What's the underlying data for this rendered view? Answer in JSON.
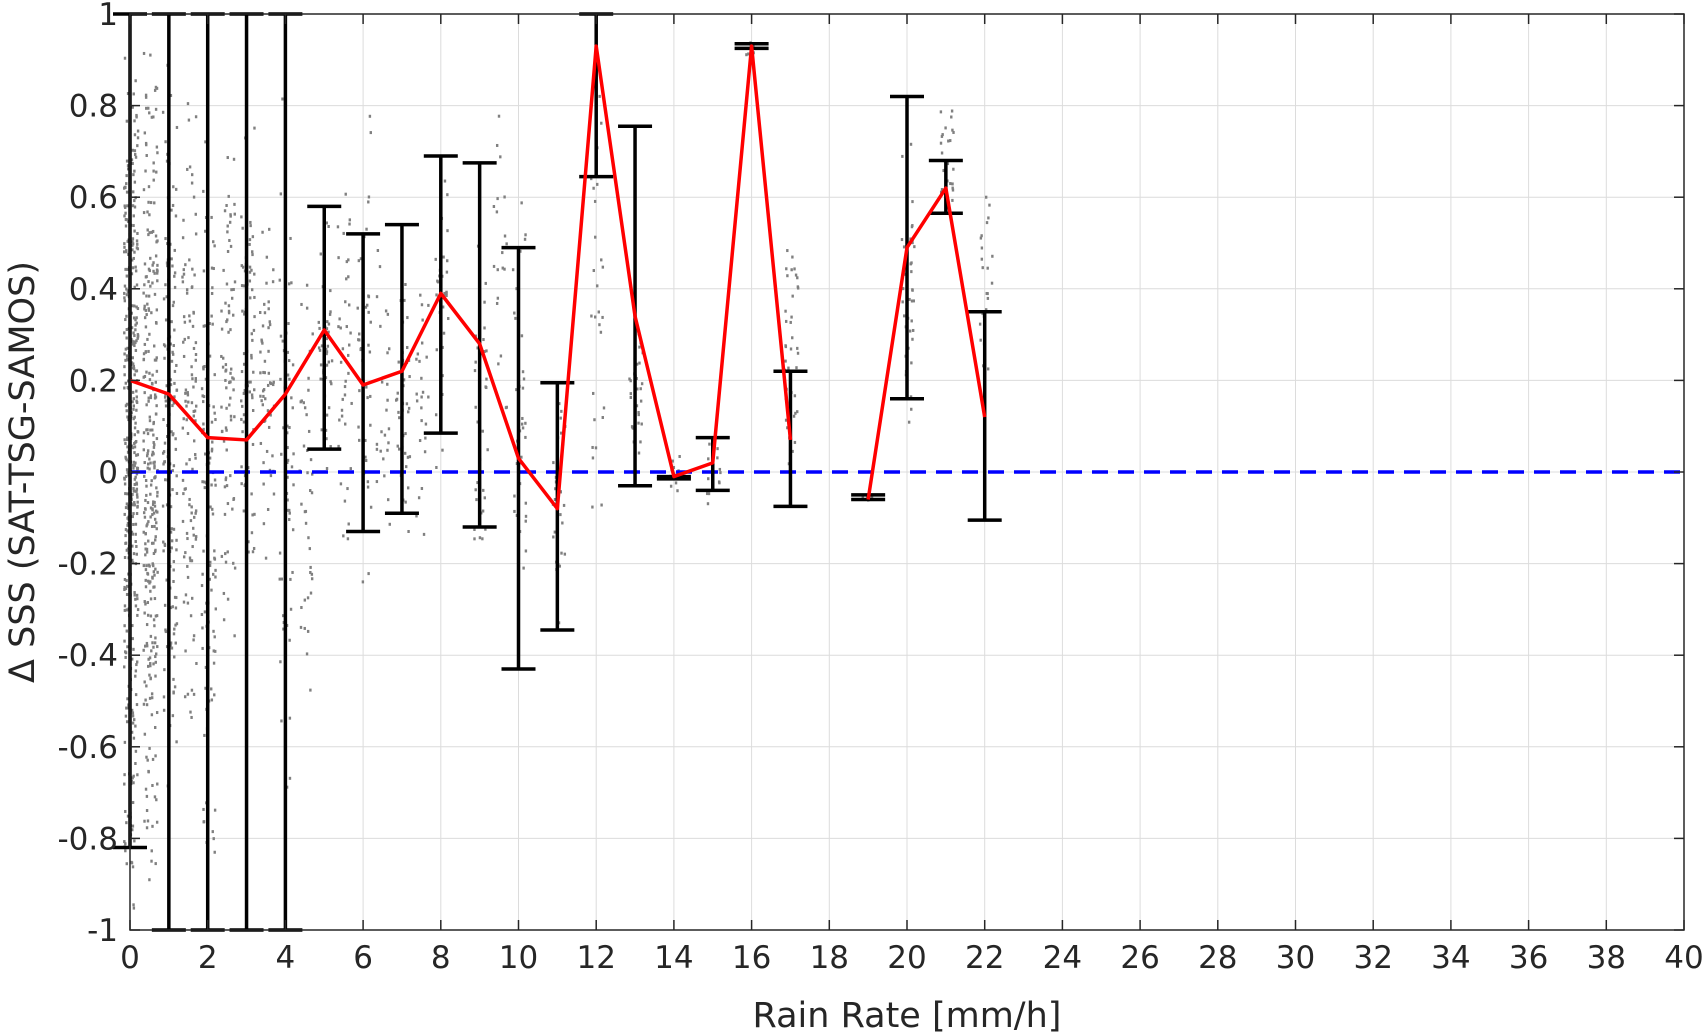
{
  "chart_data": {
    "type": "line",
    "xlabel": "Rain Rate [mm/h]",
    "ylabel": "Δ SSS (SAT-TSG-SAMOS)",
    "xlim": [
      0,
      40
    ],
    "ylim": [
      -1,
      1
    ],
    "x_ticks": [
      0,
      2,
      4,
      6,
      8,
      10,
      12,
      14,
      16,
      18,
      20,
      22,
      24,
      26,
      28,
      30,
      32,
      34,
      36,
      38,
      40
    ],
    "x_tick_labels": [
      "0",
      "2",
      "4",
      "6",
      "8",
      "10",
      "12",
      "14",
      "16",
      "18",
      "20",
      "22",
      "24",
      "26",
      "28",
      "30",
      "32",
      "34",
      "36",
      "38",
      "40"
    ],
    "y_ticks": [
      1,
      0.8,
      0.6,
      0.4,
      0.2,
      0,
      -0.2,
      -0.4,
      -0.6,
      -0.8,
      -1
    ],
    "y_tick_labels": [
      "1",
      "0.8",
      "0.6",
      "0.4",
      "0.2",
      "0",
      "-0.2",
      "-0.4",
      "-0.6",
      "-0.8",
      "-1"
    ],
    "grid": true,
    "colors": {
      "mean_line": "#ff0000",
      "error_bars": "#000000",
      "zero_line": "#0000ff",
      "scatter": "#808080",
      "grid": "#dcdcdc"
    },
    "zero_line": {
      "y": 0,
      "style": "dashed"
    },
    "mean_series": [
      {
        "segment": [
          [
            0,
            0.2
          ],
          [
            1,
            0.17
          ],
          [
            2,
            0.075
          ],
          [
            3,
            0.07
          ],
          [
            4,
            0.17
          ],
          [
            5,
            0.31
          ],
          [
            6,
            0.19
          ],
          [
            7,
            0.22
          ],
          [
            8,
            0.39
          ],
          [
            9,
            0.28
          ],
          [
            10,
            0.03
          ],
          [
            11,
            -0.08
          ],
          [
            12,
            0.93
          ],
          [
            13,
            0.34
          ],
          [
            14,
            -0.01
          ],
          [
            15,
            0.02
          ],
          [
            16,
            0.93
          ],
          [
            17,
            0.07
          ]
        ]
      },
      {
        "segment": [
          [
            19,
            -0.06
          ],
          [
            20,
            0.49
          ],
          [
            21,
            0.62
          ],
          [
            22,
            0.12
          ]
        ]
      }
    ],
    "error_bars": [
      {
        "x": 0,
        "low": -0.82,
        "high": 1.0
      },
      {
        "x": 1,
        "low": -1.0,
        "high": 1.0
      },
      {
        "x": 2,
        "low": -1.0,
        "high": 1.0
      },
      {
        "x": 3,
        "low": -1.0,
        "high": 1.0
      },
      {
        "x": 4,
        "low": -1.0,
        "high": 1.0
      },
      {
        "x": 5,
        "low": 0.05,
        "high": 0.58
      },
      {
        "x": 6,
        "low": -0.13,
        "high": 0.52
      },
      {
        "x": 7,
        "low": -0.09,
        "high": 0.54
      },
      {
        "x": 8,
        "low": 0.085,
        "high": 0.69
      },
      {
        "x": 9,
        "low": -0.12,
        "high": 0.675
      },
      {
        "x": 10,
        "low": -0.43,
        "high": 0.49
      },
      {
        "x": 11,
        "low": -0.345,
        "high": 0.195
      },
      {
        "x": 12,
        "low": 0.645,
        "high": 1.0
      },
      {
        "x": 13,
        "low": -0.03,
        "high": 0.755
      },
      {
        "x": 14,
        "low": -0.015,
        "high": -0.01
      },
      {
        "x": 15,
        "low": -0.04,
        "high": 0.075
      },
      {
        "x": 16,
        "low": 0.925,
        "high": 0.935
      },
      {
        "x": 17,
        "low": -0.075,
        "high": 0.22
      },
      {
        "x": 19,
        "low": -0.06,
        "high": -0.05
      },
      {
        "x": 20,
        "low": 0.16,
        "high": 0.82
      },
      {
        "x": 21,
        "low": 0.565,
        "high": 0.68
      },
      {
        "x": 22,
        "low": -0.105,
        "high": 0.35
      }
    ],
    "scatter_columns": [
      {
        "x": 0.0,
        "low": -1.0,
        "high": 1.0,
        "n": 420
      },
      {
        "x": 0.5,
        "low": -1.0,
        "high": 1.0,
        "n": 300
      },
      {
        "x": 1.0,
        "low": -0.8,
        "high": 0.95,
        "n": 150
      },
      {
        "x": 1.5,
        "low": -0.6,
        "high": 0.85,
        "n": 110
      },
      {
        "x": 2.0,
        "low": -0.95,
        "high": 0.9,
        "n": 110
      },
      {
        "x": 2.5,
        "low": -0.45,
        "high": 0.75,
        "n": 80
      },
      {
        "x": 3.0,
        "low": -0.3,
        "high": 0.85,
        "n": 80
      },
      {
        "x": 3.5,
        "low": -0.2,
        "high": 0.6,
        "n": 55
      },
      {
        "x": 4.0,
        "low": -0.8,
        "high": 0.9,
        "n": 60
      },
      {
        "x": 4.5,
        "low": -0.6,
        "high": 0.55,
        "n": 40
      },
      {
        "x": 5.0,
        "low": -0.05,
        "high": 0.55,
        "n": 45
      },
      {
        "x": 5.5,
        "low": -0.3,
        "high": 0.75,
        "n": 40
      },
      {
        "x": 6.0,
        "low": -0.25,
        "high": 0.8,
        "n": 40
      },
      {
        "x": 6.5,
        "low": -0.2,
        "high": 0.55,
        "n": 25
      },
      {
        "x": 7.0,
        "low": -0.2,
        "high": 0.5,
        "n": 40
      },
      {
        "x": 7.5,
        "low": -0.15,
        "high": 0.55,
        "n": 25
      },
      {
        "x": 8.0,
        "low": 0.0,
        "high": 0.7,
        "n": 35
      },
      {
        "x": 9.0,
        "low": -0.3,
        "high": 0.6,
        "n": 35
      },
      {
        "x": 9.5,
        "low": 0.0,
        "high": 0.95,
        "n": 20
      },
      {
        "x": 10.0,
        "low": -0.45,
        "high": 0.65,
        "n": 35
      },
      {
        "x": 11.0,
        "low": -0.4,
        "high": 0.2,
        "n": 30
      },
      {
        "x": 12.0,
        "low": -0.3,
        "high": 1.0,
        "n": 30
      },
      {
        "x": 13.0,
        "low": -0.05,
        "high": 0.4,
        "n": 30
      },
      {
        "x": 14.0,
        "low": -0.05,
        "high": 0.05,
        "n": 15
      },
      {
        "x": 15.0,
        "low": -0.08,
        "high": 0.08,
        "n": 15
      },
      {
        "x": 16.0,
        "low": 0.9,
        "high": 0.95,
        "n": 6
      },
      {
        "x": 17.0,
        "low": -0.08,
        "high": 0.58,
        "n": 40
      },
      {
        "x": 19.0,
        "low": -0.07,
        "high": -0.05,
        "n": 6
      },
      {
        "x": 20.0,
        "low": 0.05,
        "high": 0.8,
        "n": 40
      },
      {
        "x": 21.0,
        "low": 0.55,
        "high": 0.82,
        "n": 25
      },
      {
        "x": 22.0,
        "low": 0.1,
        "high": 0.68,
        "n": 25
      }
    ]
  }
}
